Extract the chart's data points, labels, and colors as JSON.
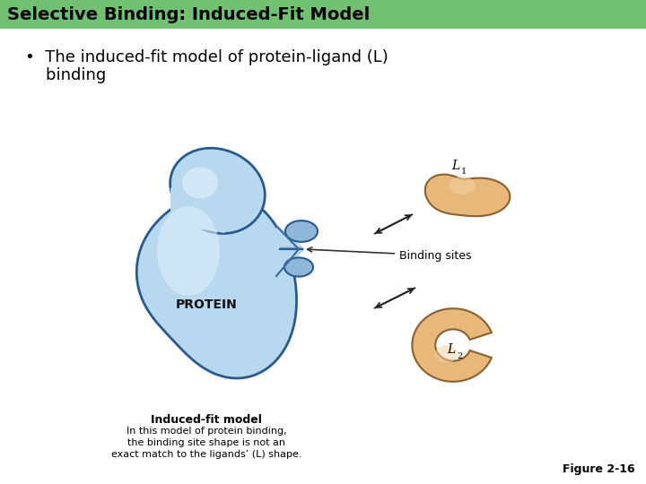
{
  "title": "Selective Binding: Induced-Fit Model",
  "title_bg": "#72c172",
  "title_color": "#000000",
  "bullet_text_line1": "•  The induced-fit model of protein-ligand (L)",
  "bullet_text_line2": "    binding",
  "figure_label": "Figure 2-16",
  "caption_bold": "Induced-fit model",
  "caption_lines": [
    "In this model of protein binding,",
    "the binding site shape is not an",
    "exact match to the ligands’ (L) shape."
  ],
  "protein_label": "PROTEIN",
  "binding_sites_label": "Binding sites",
  "L1_label": "L",
  "L2_label": "L",
  "bg_color": "#ffffff",
  "protein_fill": "#b8d8f0",
  "protein_fill_dark": "#6090b8",
  "protein_edge": "#2a5a8c",
  "ligand_fill": "#e8b87a",
  "ligand_edge": "#8a6030",
  "arrow_color": "#222222"
}
